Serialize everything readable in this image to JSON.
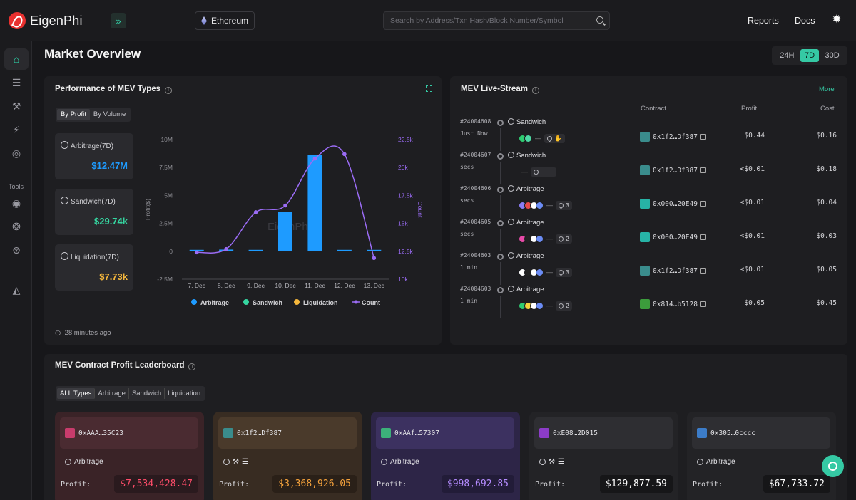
{
  "header": {
    "logo_text": "EigenPhi",
    "chain": "Ethereum",
    "search_placeholder": "Search by Address/Txn Hash/Block Number/Symbol",
    "nav": [
      "Reports",
      "Docs"
    ]
  },
  "sidebar": {
    "tools_label": "Tools"
  },
  "page": {
    "title": "Market Overview",
    "ranges": [
      "24H",
      "7D",
      "30D"
    ],
    "active_range": "7D"
  },
  "performance": {
    "title": "Performance of MEV Types",
    "tabs": [
      "By Profit",
      "By Volume"
    ],
    "stats": [
      {
        "label": "Arbitrage(7D)",
        "value": "$12.47M",
        "color": "#1e9bff"
      },
      {
        "label": "Sandwich(7D)",
        "value": "$29.74k",
        "color": "#35d5a0"
      },
      {
        "label": "Liquidation(7D)",
        "value": "$7.73k",
        "color": "#f5b73c"
      }
    ],
    "updated": "28 minutes ago"
  },
  "chart_data": {
    "type": "bar",
    "categories": [
      "7. Dec",
      "8. Dec",
      "9. Dec",
      "10. Dec",
      "11. Dec",
      "12. Dec",
      "13. Dec"
    ],
    "series": [
      {
        "name": "Arbitrage",
        "type": "bar",
        "axis": "left",
        "values": [
          0.05,
          0.15,
          0.1,
          3.5,
          8.6,
          0.05,
          0.1
        ],
        "color": "#1e9bff"
      },
      {
        "name": "Sandwich",
        "type": "bar",
        "axis": "left",
        "values": [
          0,
          0,
          0,
          0,
          0,
          0,
          0
        ],
        "color": "#35d5a0"
      },
      {
        "name": "Liquidation",
        "type": "bar",
        "axis": "left",
        "values": [
          0,
          0,
          0,
          0,
          0,
          0,
          0
        ],
        "color": "#f5b73c"
      },
      {
        "name": "Count",
        "type": "line",
        "axis": "right",
        "values": [
          12400,
          12700,
          16000,
          16600,
          20800,
          21200,
          11900
        ],
        "color": "#9b6cf5"
      }
    ],
    "ylabel": "Profit($)",
    "y2label": "Count",
    "ylim": [
      -2.5,
      10
    ],
    "yticks": [
      "10M",
      "7.5M",
      "5M",
      "2.5M",
      "0",
      "-2.5M"
    ],
    "y2lim": [
      10000,
      22500
    ],
    "y2ticks": [
      "22.5k",
      "20k",
      "17.5k",
      "15k",
      "12.5k",
      "10k"
    ],
    "watermark": "EigenPhi",
    "legend": "bottom"
  },
  "livestream": {
    "title": "MEV Live-Stream",
    "more": "More",
    "columns": [
      "Contract",
      "Profit",
      "Cost"
    ],
    "rows": [
      {
        "block": "#24004608",
        "time": "Just Now",
        "type": "Sandwich",
        "tokens": [
          "#2ecc71",
          "#4dd9a4"
        ],
        "pill": "",
        "extra": "hand",
        "contract": "0x1f2…Df387",
        "avatar": "#3a8c8c",
        "profit": "$0.44",
        "cost": "$0.16"
      },
      {
        "block": "#24004607",
        "time": "secs",
        "type": "Sandwich",
        "tokens": [],
        "pill": "",
        "extra": "",
        "contract": "0x1f2…Df387",
        "avatar": "#3a8c8c",
        "profit": "<$0.01",
        "cost": "$0.18"
      },
      {
        "block": "#24004606",
        "time": "secs",
        "type": "Arbitrage",
        "tokens": [
          "#8a7cf5",
          "#e84a4a",
          "#ffffff",
          "#6b8cf5"
        ],
        "pill": "3",
        "extra": "",
        "contract": "0x000…20E49",
        "avatar": "#27b3a6",
        "profit": "<$0.01",
        "cost": "$0.04"
      },
      {
        "block": "#24004605",
        "time": "secs",
        "type": "Arbitrage",
        "tokens": [
          "#e84aa8",
          "#222222",
          "#ffffff",
          "#6b8cf5"
        ],
        "pill": "2",
        "extra": "",
        "contract": "0x000…20E49",
        "avatar": "#27b3a6",
        "profit": "<$0.01",
        "cost": "$0.03"
      },
      {
        "block": "#24004603",
        "time": "1 min",
        "type": "Arbitrage",
        "tokens": [
          "#ffffff",
          "#222222",
          "#ffffff",
          "#6b8cf5"
        ],
        "pill": "3",
        "extra": "",
        "contract": "0x1f2…Df387",
        "avatar": "#3a8c8c",
        "profit": "<$0.01",
        "cost": "$0.05"
      },
      {
        "block": "#24004603",
        "time": "1 min",
        "type": "Arbitrage",
        "tokens": [
          "#2ecc71",
          "#f5d33c",
          "#ffffff",
          "#6b8cf5"
        ],
        "pill": "2",
        "extra": "",
        "contract": "0x814…b5128",
        "avatar": "#3c9c3c",
        "profit": "$0.05",
        "cost": "$0.45"
      }
    ]
  },
  "leaderboard": {
    "title": "MEV Contract Profit Leaderboard",
    "tabs": [
      "ALL Types",
      "Arbitrage",
      "Sandwich",
      "Liquidation"
    ],
    "profit_label": "Profit:",
    "cards": [
      {
        "address": "0xAAA…35C23",
        "type": "Arbitrage",
        "profit": "$7,534,428.47",
        "profit_color": "#ff4d6a",
        "bg": "#3a2327",
        "addr_bg": "#4a2b31",
        "val_bg": "#2a1a1e",
        "avatar": "#c83c6c"
      },
      {
        "address": "0x1f2…Df387",
        "type": "",
        "profit": "$3,368,926.05",
        "profit_color": "#f5a23c",
        "bg": "#382c22",
        "addr_bg": "#4a3a2b",
        "val_bg": "#2a2018",
        "avatar": "#3a8c8c"
      },
      {
        "address": "0xAAf…57307",
        "type": "Arbitrage",
        "profit": "$998,692.85",
        "profit_color": "#b58cff",
        "bg": "#2d2547",
        "addr_bg": "#3c3160",
        "val_bg": "#221c38",
        "avatar": "#3cb07a"
      },
      {
        "address": "0xE08…2D015",
        "type": "",
        "profit": "$129,877.59",
        "profit_color": "#ffffff",
        "bg": "#232326",
        "addr_bg": "#2e2e32",
        "val_bg": "#161618",
        "avatar": "#8c3cc8"
      },
      {
        "address": "0x305…0cccc",
        "type": "Arbitrage",
        "profit": "$67,733.72",
        "profit_color": "#ffffff",
        "bg": "#232326",
        "addr_bg": "#2e2e32",
        "val_bg": "#161618",
        "avatar": "#3c7cc8"
      }
    ]
  }
}
